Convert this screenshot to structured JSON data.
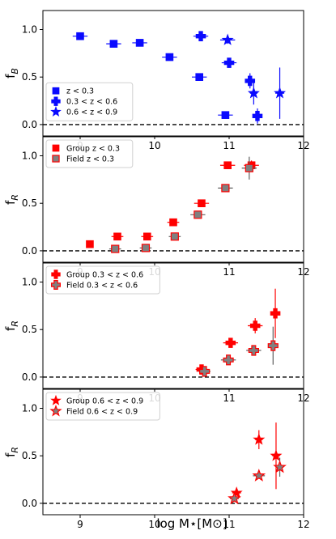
{
  "figure": {
    "xlabel": "log M⋆[M⊙]"
  },
  "colors": {
    "blue": "#0a0aff",
    "red": "#ff0000",
    "field": "#808080",
    "errbar_grey": "#606060"
  },
  "chart_data": [
    {
      "type": "scatter",
      "ylabel_main": "f",
      "ylabel_sub": "B",
      "xlim": [
        8.5,
        12
      ],
      "ylim": [
        -0.12,
        1.2
      ],
      "xticks": [
        9,
        10,
        11,
        12
      ],
      "yticks": [
        0.0,
        0.5,
        1.0
      ],
      "ytick_labels": [
        "0.0",
        "0.5",
        "1.0"
      ],
      "legend_position": "lower-left",
      "reference_line": 0,
      "series": [
        {
          "name": "z < 0.3",
          "marker": "square",
          "color": "#0a0aff",
          "edge": "#0a0aff",
          "points": [
            {
              "x": 9.0,
              "y": 0.93,
              "xerr": 0.1,
              "yerr": 0.03
            },
            {
              "x": 9.45,
              "y": 0.85,
              "xerr": 0.1,
              "yerr": 0.03
            },
            {
              "x": 9.8,
              "y": 0.86,
              "xerr": 0.1,
              "yerr": 0.03
            },
            {
              "x": 10.2,
              "y": 0.71,
              "xerr": 0.1,
              "yerr": 0.03
            },
            {
              "x": 10.6,
              "y": 0.5,
              "xerr": 0.1,
              "yerr": 0.03
            },
            {
              "x": 10.95,
              "y": 0.1,
              "xerr": 0.1,
              "yerr": 0.03
            }
          ]
        },
        {
          "name": "0.3 < z < 0.6",
          "marker": "plus",
          "color": "#0a0aff",
          "edge": "#0a0aff",
          "points": [
            {
              "x": 10.62,
              "y": 0.93,
              "xerr": 0.1,
              "yerr": 0.04
            },
            {
              "x": 11.0,
              "y": 0.65,
              "xerr": 0.1,
              "yerr": 0.05
            },
            {
              "x": 11.28,
              "y": 0.46,
              "xerr": 0.05,
              "yerr": 0.08
            },
            {
              "x": 11.38,
              "y": 0.09,
              "xerr": 0.05,
              "yerr": 0.08
            }
          ]
        },
        {
          "name": "0.6 < z < 0.9",
          "marker": "star",
          "color": "#0a0aff",
          "edge": "#0a0aff",
          "points": [
            {
              "x": 10.98,
              "y": 0.89,
              "xerr": 0.1,
              "yerr": 0.04
            },
            {
              "x": 11.33,
              "y": 0.33,
              "xerr": 0.05,
              "yerr": 0.12
            },
            {
              "x": 11.68,
              "y": 0.33,
              "xerr": 0.06,
              "yerr": 0.27
            }
          ]
        }
      ]
    },
    {
      "type": "scatter",
      "ylabel_main": "f",
      "ylabel_sub": "R",
      "xlim": [
        8.5,
        12
      ],
      "ylim": [
        -0.12,
        1.2
      ],
      "xticks": [
        9,
        10,
        11,
        12
      ],
      "yticks": [
        0.0,
        0.5,
        1.0
      ],
      "ytick_labels": [
        "0.0",
        "0.5",
        "1.0"
      ],
      "legend_position": "upper-left",
      "reference_line": 0,
      "series": [
        {
          "name": "Group z < 0.3",
          "marker": "square",
          "color": "#ff0000",
          "edge": "#ff0000",
          "points": [
            {
              "x": 9.13,
              "y": 0.07,
              "xerr": 0,
              "yerr": 0.02
            },
            {
              "x": 9.5,
              "y": 0.15,
              "xerr": 0.08,
              "yerr": 0.03
            },
            {
              "x": 9.9,
              "y": 0.15,
              "xerr": 0.08,
              "yerr": 0.03
            },
            {
              "x": 10.25,
              "y": 0.3,
              "xerr": 0.08,
              "yerr": 0.03
            },
            {
              "x": 10.63,
              "y": 0.5,
              "xerr": 0.1,
              "yerr": 0.04
            },
            {
              "x": 10.98,
              "y": 0.9,
              "xerr": 0.1,
              "yerr": 0.03
            },
            {
              "x": 11.3,
              "y": 0.9,
              "xerr": 0.1,
              "yerr": 0.05
            }
          ]
        },
        {
          "name": "Field z < 0.3",
          "marker": "square",
          "color": "#808080",
          "edge": "#ff0000",
          "points": [
            {
              "x": 9.47,
              "y": 0.02,
              "xerr": 0.08,
              "yerr": 0.01
            },
            {
              "x": 9.88,
              "y": 0.03,
              "xerr": 0.08,
              "yerr": 0.01
            },
            {
              "x": 10.27,
              "y": 0.15,
              "xerr": 0.08,
              "yerr": 0.02
            },
            {
              "x": 10.58,
              "y": 0.38,
              "xerr": 0.1,
              "yerr": 0.02
            },
            {
              "x": 10.95,
              "y": 0.66,
              "xerr": 0.1,
              "yerr": 0.03
            },
            {
              "x": 11.27,
              "y": 0.87,
              "xerr": 0.1,
              "yerr": 0.12
            }
          ]
        }
      ]
    },
    {
      "type": "scatter",
      "ylabel_main": "f",
      "ylabel_sub": "R",
      "xlim": [
        8.5,
        12
      ],
      "ylim": [
        -0.12,
        1.2
      ],
      "xticks": [
        9,
        10,
        11,
        12
      ],
      "yticks": [
        0.0,
        0.5,
        1.0
      ],
      "ytick_labels": [
        "0.0",
        "0.5",
        "1.0"
      ],
      "legend_position": "upper-left",
      "reference_line": 0,
      "series": [
        {
          "name": "Group 0.3 < z < 0.6",
          "marker": "plus",
          "color": "#ff0000",
          "edge": "#ff0000",
          "points": [
            {
              "x": 10.63,
              "y": 0.08,
              "xerr": 0.08,
              "yerr": 0.03
            },
            {
              "x": 11.02,
              "y": 0.36,
              "xerr": 0.1,
              "yerr": 0.04
            },
            {
              "x": 11.35,
              "y": 0.54,
              "xerr": 0.1,
              "yerr": 0.08
            },
            {
              "x": 11.62,
              "y": 0.67,
              "xerr": 0.05,
              "yerr": 0.26
            }
          ]
        },
        {
          "name": "Field 0.3 < z < 0.6",
          "marker": "plus",
          "color": "#808080",
          "edge": "#ff0000",
          "points": [
            {
              "x": 10.67,
              "y": 0.06,
              "xerr": 0.08,
              "yerr": 0.02
            },
            {
              "x": 10.99,
              "y": 0.18,
              "xerr": 0.1,
              "yerr": 0.03
            },
            {
              "x": 11.33,
              "y": 0.28,
              "xerr": 0.1,
              "yerr": 0.03
            },
            {
              "x": 11.59,
              "y": 0.33,
              "xerr": 0.05,
              "yerr": 0.2
            }
          ]
        }
      ]
    },
    {
      "type": "scatter",
      "ylabel_main": "f",
      "ylabel_sub": "R",
      "xlim": [
        8.5,
        12
      ],
      "ylim": [
        -0.12,
        1.2
      ],
      "xticks": [
        9,
        10,
        11,
        12
      ],
      "yticks": [
        0.0,
        0.5,
        1.0
      ],
      "ytick_labels": [
        "0.0",
        "0.5",
        "1.0"
      ],
      "legend_position": "upper-left",
      "reference_line": 0,
      "series": [
        {
          "name": "Group 0.6 < z < 0.9",
          "marker": "star",
          "color": "#ff0000",
          "edge": "#ff0000",
          "points": [
            {
              "x": 11.1,
              "y": 0.11,
              "xerr": 0.06,
              "yerr": 0.03
            },
            {
              "x": 11.4,
              "y": 0.67,
              "xerr": 0.05,
              "yerr": 0.1
            },
            {
              "x": 11.63,
              "y": 0.5,
              "xerr": 0.05,
              "yerr": 0.35
            }
          ]
        },
        {
          "name": "Field 0.6 < z < 0.9",
          "marker": "star",
          "color": "#808080",
          "edge": "#ff0000",
          "points": [
            {
              "x": 11.07,
              "y": 0.05,
              "xerr": 0.06,
              "yerr": 0.02
            },
            {
              "x": 11.4,
              "y": 0.29,
              "xerr": 0.08,
              "yerr": 0.03
            },
            {
              "x": 11.68,
              "y": 0.38,
              "xerr": 0.05,
              "yerr": 0.1
            }
          ]
        }
      ]
    }
  ]
}
